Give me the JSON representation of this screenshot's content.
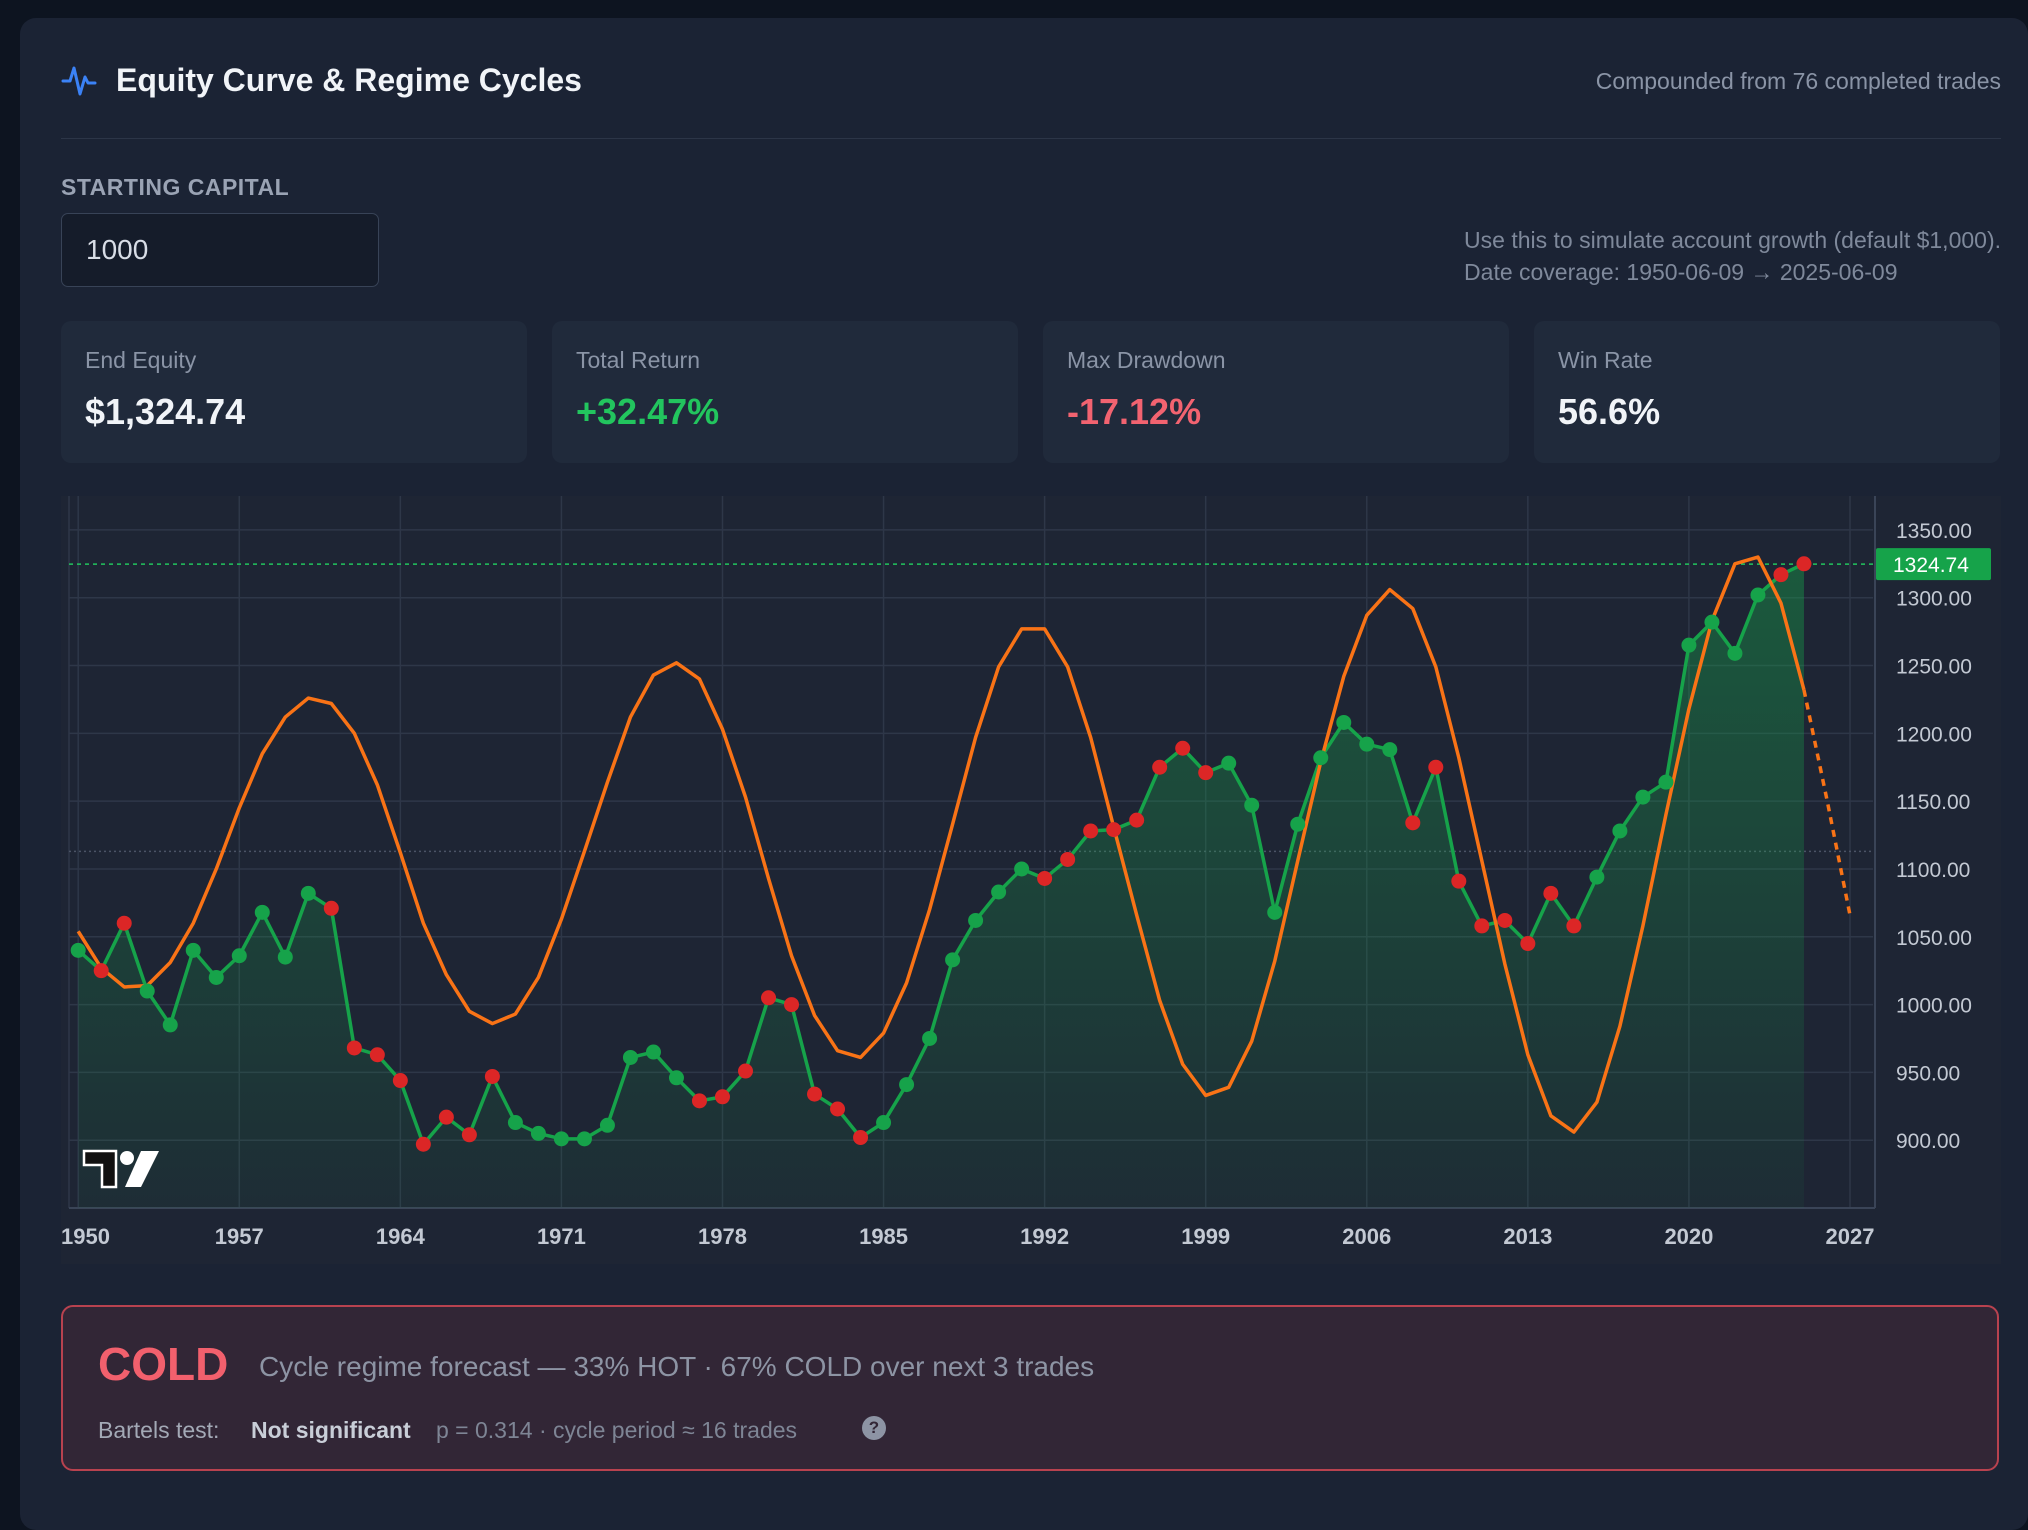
{
  "header": {
    "title": "Equity Curve & Regime Cycles",
    "subtitle": "Compounded from 76 completed trades",
    "icon": "pulse-icon"
  },
  "capital": {
    "label": "STARTING CAPITAL",
    "value": "1000",
    "hint_line1": "Use this to simulate account growth (default $1,000).",
    "hint_line2": "Date coverage: 1950-06-09 → 2025-06-09"
  },
  "stats": [
    {
      "label": "End Equity",
      "value": "$1,324.74"
    },
    {
      "label": "Total Return",
      "value": "+32.47%",
      "color": "#22c55e"
    },
    {
      "label": "Max Drawdown",
      "value": "-17.12%",
      "color": "#f26370"
    },
    {
      "label": "Win Rate",
      "value": "56.6%"
    }
  ],
  "chart_data": {
    "type": "line",
    "x_ticks": [
      "1950",
      "1957",
      "1964",
      "1971",
      "1978",
      "1985",
      "1992",
      "1999",
      "2006",
      "2013",
      "2020",
      "2027"
    ],
    "y_ticks": [
      "1350.00",
      "1300.00",
      "1250.00",
      "1200.00",
      "1150.00",
      "1100.00",
      "1050.00",
      "1000.00",
      "950.00",
      "900.00"
    ],
    "ylim": [
      850,
      1375
    ],
    "xlim": [
      1949.6,
      2028.0
    ],
    "last_value_label": "1324.74",
    "last_value": 1324.74,
    "reference_level": 1113,
    "colors": {
      "up": "#16a34a",
      "down": "#dc2626",
      "cycle": "#f97316",
      "last_label_bg": "#16a34a"
    },
    "equity": {
      "x": [
        1950.0,
        1951.0,
        1952.0,
        1953.0,
        1954.0,
        1955.0,
        1956.0,
        1957.0,
        1958.0,
        1959.0,
        1960.0,
        1961.0,
        1962.0,
        1963.0,
        1964.0,
        1965.0,
        1966.0,
        1967.0,
        1968.0,
        1969.0,
        1970.0,
        1971.0,
        1972.0,
        1973.0,
        1974.0,
        1975.0,
        1976.0,
        1977.0,
        1978.0,
        1979.0,
        1980.0,
        1981.0,
        1982.0,
        1983.0,
        1984.0,
        1985.0,
        1986.0,
        1987.0,
        1988.0,
        1989.0,
        1990.0,
        1991.0,
        1992.0,
        1993.0,
        1994.0,
        1995.0,
        1996.0,
        1997.0,
        1998.0,
        1999.0,
        2000.0,
        2001.0,
        2002.0,
        2003.0,
        2004.0,
        2005.0,
        2006.0,
        2007.0,
        2008.0,
        2009.0,
        2010.0,
        2011.0,
        2012.0,
        2013.0,
        2014.0,
        2015.0,
        2016.0,
        2017.0,
        2018.0,
        2019.0,
        2020.0,
        2021.0,
        2022.0,
        2023.0,
        2024.0,
        2025.0
      ],
      "values": [
        1040,
        1025,
        1060,
        1010,
        985,
        1040,
        1020,
        1036,
        1068,
        1035,
        1082,
        1071,
        968,
        963,
        944,
        897,
        917,
        904,
        947,
        913,
        905,
        901,
        901,
        911,
        961,
        965,
        946,
        929,
        932,
        951,
        1005,
        1000,
        934,
        923,
        902,
        913,
        941,
        975,
        1033,
        1062,
        1083,
        1100,
        1093,
        1107,
        1128,
        1129,
        1136,
        1175,
        1189,
        1171,
        1178,
        1147,
        1068,
        1133,
        1182,
        1208,
        1192,
        1188,
        1134,
        1175,
        1091,
        1058,
        1062,
        1045,
        1082,
        1058,
        1094,
        1128,
        1153,
        1164,
        1265,
        1282,
        1259,
        1302,
        1317,
        1325
      ],
      "up": [
        true,
        false,
        false,
        true,
        true,
        true,
        true,
        true,
        true,
        true,
        true,
        false,
        false,
        false,
        false,
        false,
        false,
        false,
        false,
        true,
        true,
        true,
        true,
        true,
        true,
        true,
        true,
        false,
        false,
        false,
        false,
        false,
        false,
        false,
        false,
        true,
        true,
        true,
        true,
        true,
        true,
        true,
        false,
        false,
        false,
        false,
        false,
        false,
        false,
        false,
        true,
        true,
        true,
        true,
        true,
        true,
        true,
        true,
        false,
        false,
        false,
        false,
        false,
        false,
        false,
        false,
        true,
        true,
        true,
        true,
        true,
        true,
        true,
        true,
        false,
        false
      ]
    },
    "cycle": {
      "x": [
        1950.0,
        1951.0,
        1952.0,
        1953.0,
        1954.0,
        1955.0,
        1956.0,
        1957.0,
        1958.0,
        1959.0,
        1960.0,
        1961.0,
        1962.0,
        1963.0,
        1964.0,
        1965.0,
        1966.0,
        1967.0,
        1968.0,
        1969.0,
        1970.0,
        1971.0,
        1972.0,
        1973.0,
        1974.0,
        1975.0,
        1976.0,
        1977.0,
        1978.0,
        1979.0,
        1980.0,
        1981.0,
        1982.0,
        1983.0,
        1984.0,
        1985.0,
        1986.0,
        1987.0,
        1988.0,
        1989.0,
        1990.0,
        1991.0,
        1992.0,
        1993.0,
        1994.0,
        1995.0,
        1996.0,
        1997.0,
        1998.0,
        1999.0,
        2000.0,
        2001.0,
        2002.0,
        2003.0,
        2004.0,
        2005.0,
        2006.0,
        2007.0,
        2008.0,
        2009.0,
        2010.0,
        2011.0,
        2012.0,
        2013.0,
        2014.0,
        2015.0,
        2016.0,
        2017.0,
        2018.0,
        2019.0,
        2020.0,
        2021.0,
        2022.0,
        2023.0,
        2024.0,
        2025.0
      ],
      "values": [
        1054,
        1027,
        1013,
        1014,
        1031,
        1060,
        1100,
        1145,
        1185,
        1212,
        1226,
        1222,
        1200,
        1162,
        1112,
        1060,
        1022,
        995,
        986,
        993,
        1020,
        1063,
        1113,
        1164,
        1212,
        1243,
        1252,
        1240,
        1203,
        1153,
        1093,
        1036,
        992,
        966,
        961,
        979,
        1016,
        1070,
        1133,
        1197,
        1249,
        1277,
        1277,
        1249,
        1197,
        1131,
        1066,
        1003,
        956,
        933,
        939,
        973,
        1032,
        1106,
        1179,
        1242,
        1287,
        1306,
        1292,
        1249,
        1182,
        1106,
        1030,
        963,
        918,
        906,
        928,
        984,
        1058,
        1140,
        1218,
        1283,
        1325,
        1330,
        1296,
        1232
      ],
      "forecast_x": [
        2025.0,
        2026.0,
        2027.0
      ],
      "forecast_values": [
        1232,
        1151,
        1066
      ]
    }
  },
  "regime": {
    "state": "COLD",
    "forecast": "Cycle regime forecast — 33% HOT · 67% COLD over next 3 trades",
    "bartels_label": "Bartels test:",
    "bartels_result": "Not significant",
    "bartels_detail": "p = 0.314 · cycle period ≈ 16 trades",
    "help_icon": "question-icon",
    "color": "#f2606d"
  }
}
